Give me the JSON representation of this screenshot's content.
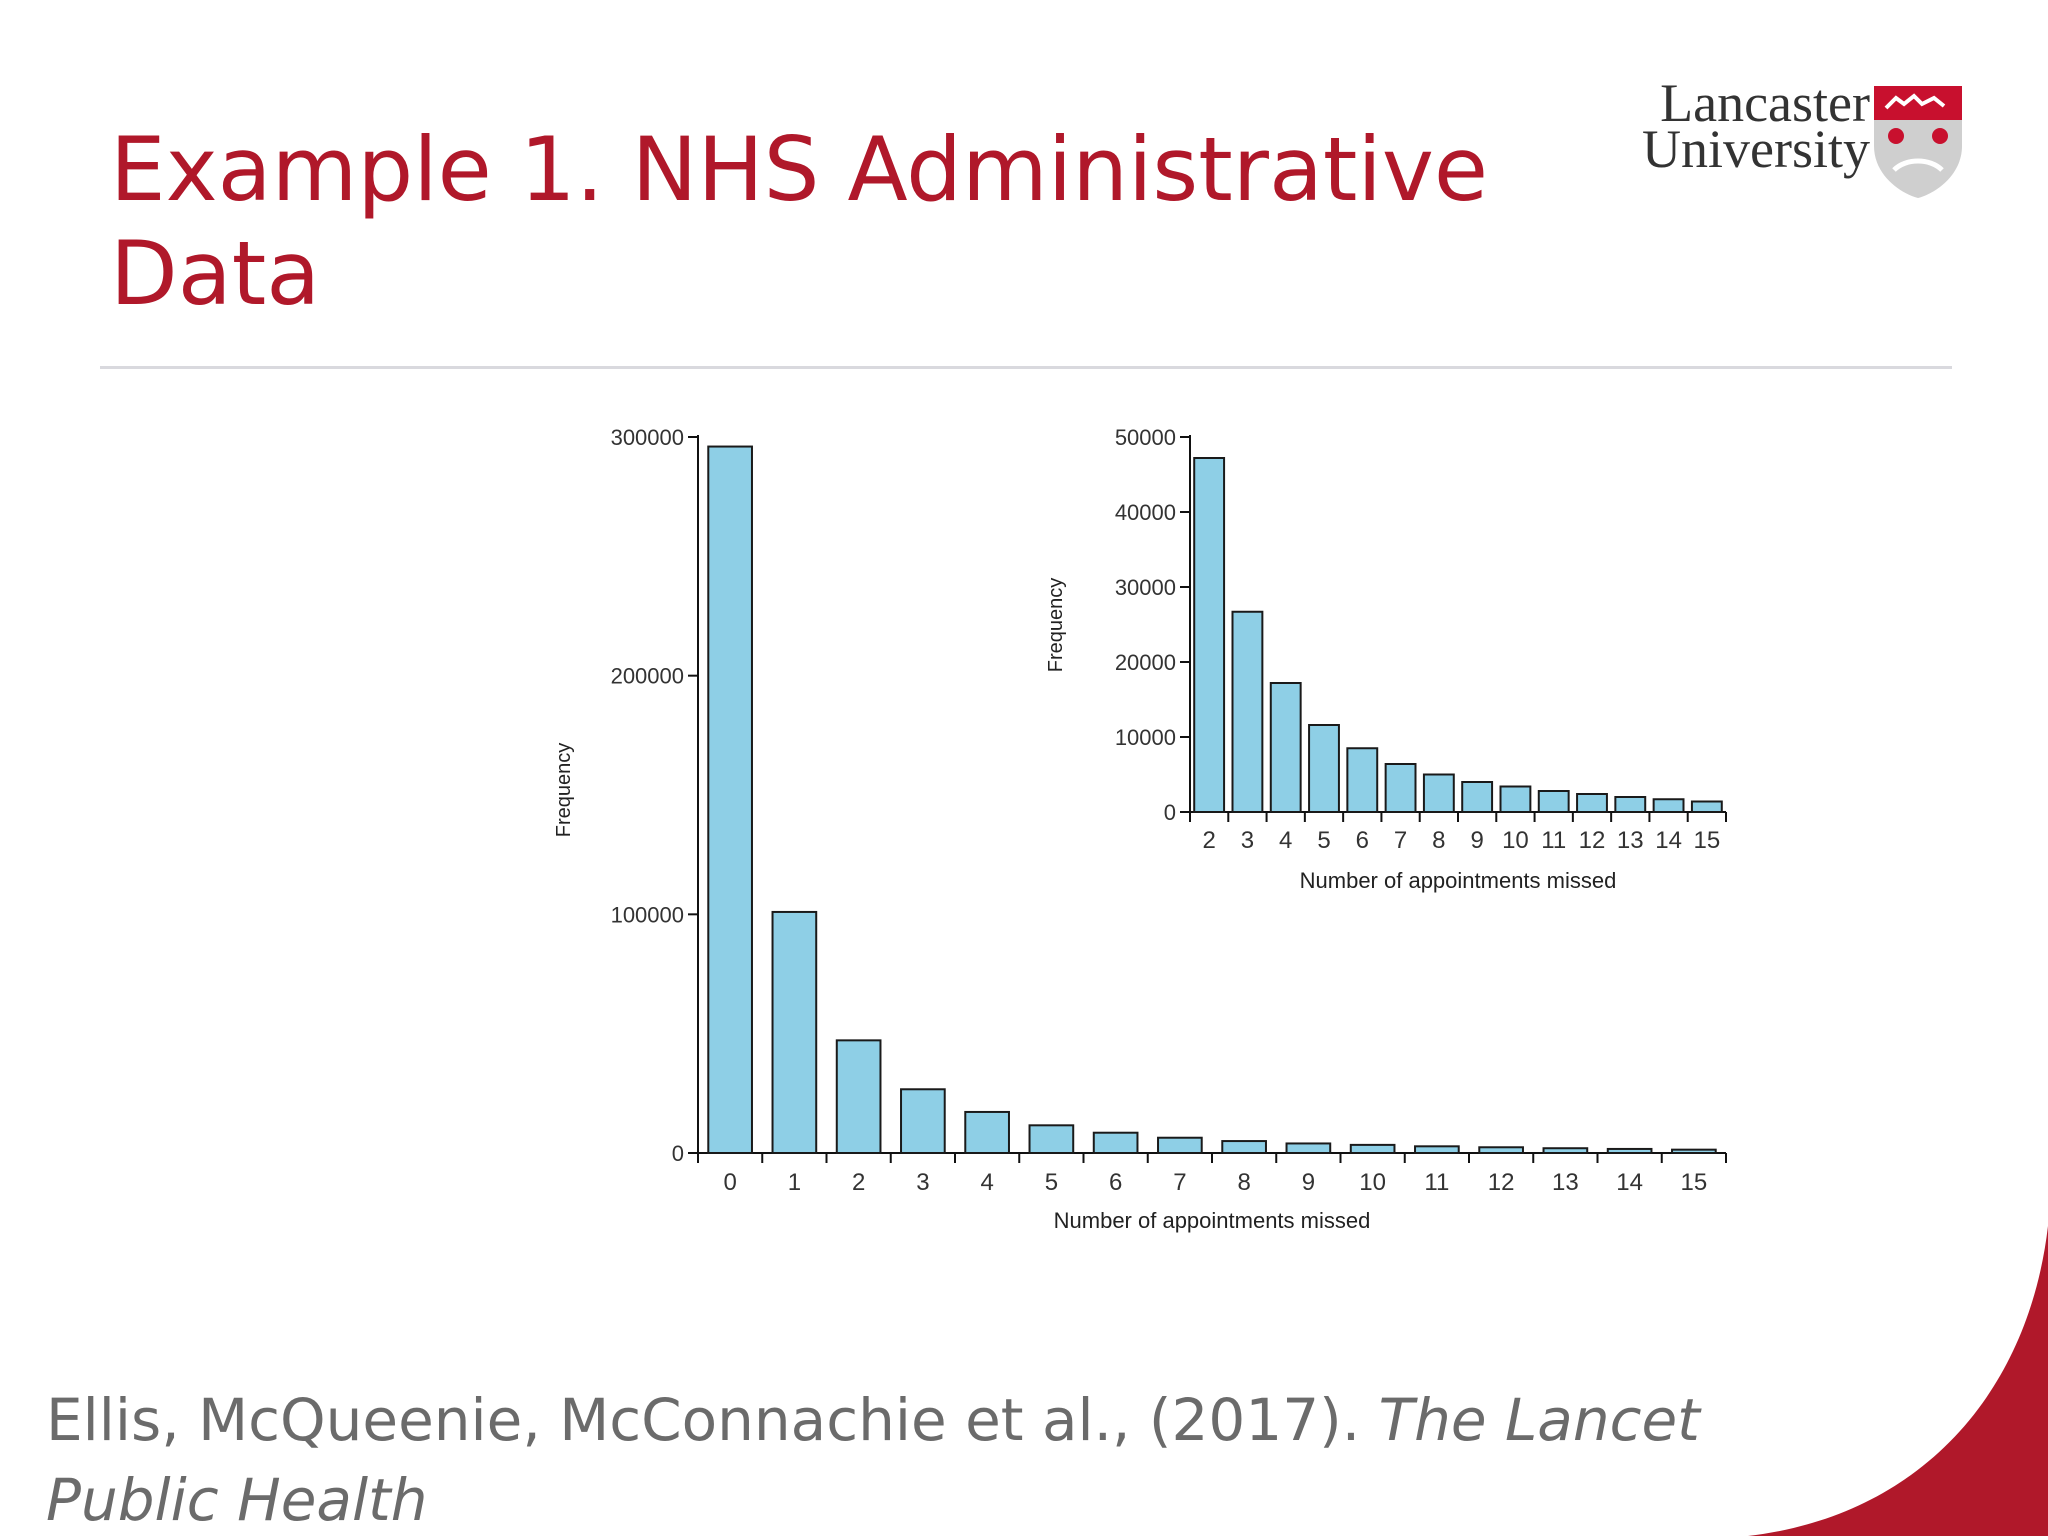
{
  "slide": {
    "title": "Example 1. NHS Administrative Data",
    "citation_authors": "Ellis, McQueenie, McConnachie et al., (2017).",
    "citation_journal": "The Lancet Public Health"
  },
  "logo": {
    "line1": "Lancaster",
    "line2": "University"
  },
  "colors": {
    "title": "#b0182a",
    "bar_fill": "#8ecfe6",
    "bar_stroke": "#1a1a1a",
    "accent_corner": "#b0182a"
  },
  "chart_data": [
    {
      "type": "bar",
      "title": "",
      "xlabel": "Number of appointments missed",
      "ylabel": "Frequency",
      "categories": [
        "0",
        "1",
        "2",
        "3",
        "4",
        "5",
        "6",
        "7",
        "8",
        "9",
        "10",
        "11",
        "12",
        "13",
        "14",
        "15"
      ],
      "values": [
        296000,
        101000,
        47200,
        26700,
        17200,
        11600,
        8500,
        6400,
        5000,
        4000,
        3400,
        2800,
        2400,
        2000,
        1700,
        1400
      ],
      "ylim": [
        0,
        300000
      ],
      "yticks": [
        "0",
        "100000",
        "200000",
        "300000"
      ],
      "grid": false
    },
    {
      "type": "bar",
      "title": "",
      "xlabel": "Number of appointments missed",
      "ylabel": "Frequency",
      "categories": [
        "2",
        "3",
        "4",
        "5",
        "6",
        "7",
        "8",
        "9",
        "10",
        "11",
        "12",
        "13",
        "14",
        "15"
      ],
      "values": [
        47200,
        26700,
        17200,
        11600,
        8500,
        6400,
        5000,
        4000,
        3400,
        2800,
        2400,
        2000,
        1700,
        1400
      ],
      "ylim": [
        0,
        50000
      ],
      "yticks": [
        "0",
        "10000",
        "20000",
        "30000",
        "40000",
        "50000"
      ],
      "grid": false
    }
  ]
}
